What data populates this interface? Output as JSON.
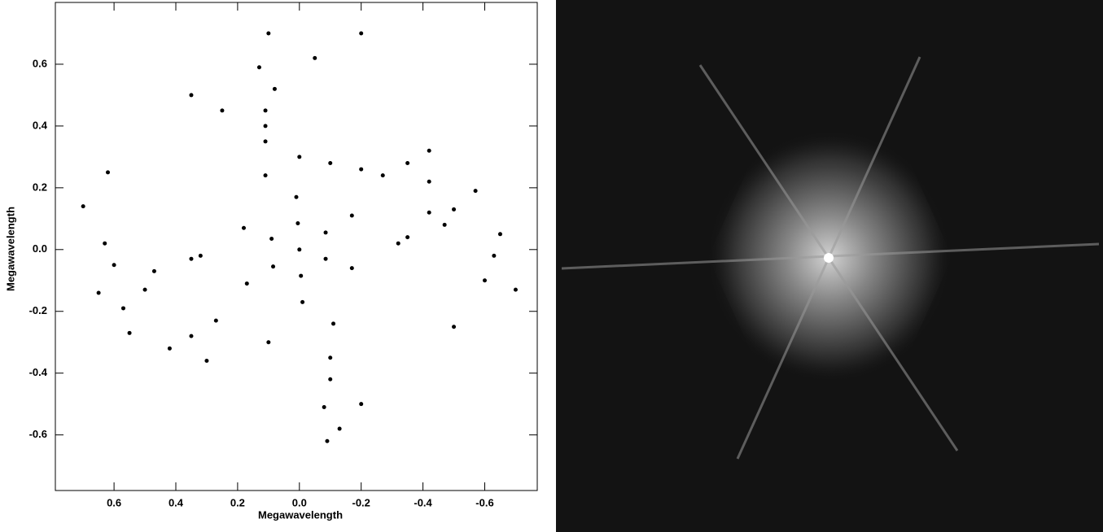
{
  "chart_data": {
    "type": "scatter",
    "xlabel": "Megawavelength",
    "ylabel": "Megawavelength",
    "xlim": [
      0.79,
      -0.77
    ],
    "ylim": [
      -0.78,
      0.8
    ],
    "xticks": [
      0.6,
      0.4,
      0.2,
      {
        "value": 0,
        "label": "0.0"
      },
      -0.2,
      -0.4,
      -0.6
    ],
    "yticks": [
      0.6,
      0.4,
      0.2,
      {
        "value": 0,
        "label": "0.0"
      },
      -0.2,
      -0.4,
      -0.6
    ],
    "color": "#000000",
    "x": [
      0.13,
      0.08,
      0.11,
      0.11,
      -0.27,
      -0.42,
      -0.57,
      -0.5,
      -0.47,
      -0.32,
      -0.35,
      -0.63,
      -0.7,
      -0.11,
      -0.1,
      -0.08,
      -0.13,
      0.7,
      0.63,
      0.47,
      0.5,
      0.65,
      0.57,
      0.42,
      0.27,
      0.35,
      0.32,
      0.18,
      0.17,
      -0.17,
      -0.17,
      0.01,
      -0.01,
      0,
      0.09,
      0.005,
      -0.085,
      -0.085,
      -0.005,
      0.085,
      0.11,
      0.11,
      0,
      -0.1,
      -0.2,
      -0.35,
      -0.42,
      -0.42,
      0.62,
      0.6,
      0.55,
      0.35,
      0.3,
      0.1,
      -0.1,
      -0.09,
      -0.2,
      -0.5,
      -0.6,
      -0.65,
      0.25,
      0.35,
      -0.05,
      -0.2,
      0.1
    ],
    "y": [
      0.59,
      0.52,
      0.35,
      0.24,
      0.24,
      0.32,
      0.19,
      0.13,
      0.08,
      0.02,
      0.04,
      -0.02,
      -0.13,
      -0.24,
      -0.35,
      -0.51,
      -0.58,
      0.14,
      0.02,
      -0.07,
      -0.13,
      -0.14,
      -0.19,
      -0.32,
      -0.23,
      -0.03,
      -0.02,
      0.07,
      -0.11,
      -0.06,
      0.11,
      0.17,
      -0.17,
      0,
      0.035,
      0.085,
      0.055,
      -0.03,
      -0.085,
      -0.055,
      0.45,
      0.4,
      0.3,
      0.28,
      0.26,
      0.28,
      0.22,
      0.12,
      0.25,
      -0.05,
      -0.27,
      -0.28,
      -0.36,
      -0.3,
      -0.42,
      -0.62,
      -0.5,
      -0.25,
      -0.1,
      0.05,
      0.45,
      0.5,
      0.62,
      0.7,
      0.7
    ]
  }
}
